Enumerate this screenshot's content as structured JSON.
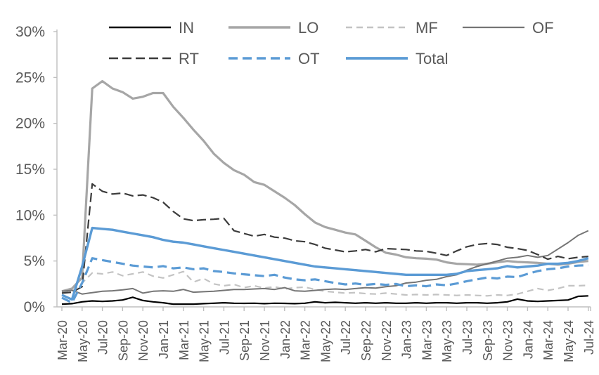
{
  "chart_data": {
    "type": "line",
    "title": "",
    "ylabel": "",
    "xlabel": "",
    "ylim": [
      0,
      30
    ],
    "grid": false,
    "legend_position": "top",
    "y_tick_labels": [
      "0%",
      "5%",
      "10%",
      "15%",
      "20%",
      "25%",
      "30%"
    ],
    "x_tick_labels": [
      "Mar-20",
      "May-20",
      "Jul-20",
      "Sep-20",
      "Nov-20",
      "Jan-21",
      "Mar-21",
      "May-21",
      "Jul-21",
      "Sep-21",
      "Nov-21",
      "Jan-22",
      "Mar-22",
      "May-22",
      "Jul-22",
      "Sep-22",
      "Nov-22",
      "Jan-23",
      "Mar-23",
      "May-23",
      "Jul-23",
      "Sep-23",
      "Nov-23",
      "Jan-24",
      "Mar-24",
      "May-24",
      "Jul-24"
    ],
    "months": [
      "Mar-20",
      "Apr-20",
      "May-20",
      "Jun-20",
      "Jul-20",
      "Aug-20",
      "Sep-20",
      "Oct-20",
      "Nov-20",
      "Dec-20",
      "Jan-21",
      "Feb-21",
      "Mar-21",
      "Apr-21",
      "May-21",
      "Jun-21",
      "Jul-21",
      "Aug-21",
      "Sep-21",
      "Oct-21",
      "Nov-21",
      "Dec-21",
      "Jan-22",
      "Feb-22",
      "Mar-22",
      "Apr-22",
      "May-22",
      "Jun-22",
      "Jul-22",
      "Aug-22",
      "Sep-22",
      "Oct-22",
      "Nov-22",
      "Dec-22",
      "Jan-23",
      "Feb-23",
      "Mar-23",
      "Apr-23",
      "May-23",
      "Jun-23",
      "Jul-23",
      "Aug-23",
      "Sep-23",
      "Oct-23",
      "Nov-23",
      "Dec-23",
      "Jan-24",
      "Feb-24",
      "Mar-24",
      "Apr-24",
      "May-24",
      "Jun-24",
      "Jul-24"
    ],
    "colors": {
      "accent_blue": "#5b9bd5",
      "gray_light": "#c3c3c3",
      "gray_mid": "#a6a6a6",
      "gray_dark": "#757575",
      "near_black": "#3b3b3b",
      "black": "#000000",
      "axis": "#bfbfbf",
      "text": "#595959"
    },
    "series": [
      {
        "name": "IN",
        "color": "#000000",
        "dash": "none",
        "width": 2.2,
        "values": [
          0.3,
          0.35,
          0.55,
          0.65,
          0.6,
          0.65,
          0.75,
          1.05,
          0.7,
          0.55,
          0.45,
          0.3,
          0.3,
          0.3,
          0.35,
          0.4,
          0.45,
          0.4,
          0.38,
          0.4,
          0.35,
          0.4,
          0.38,
          0.35,
          0.4,
          0.55,
          0.45,
          0.5,
          0.45,
          0.4,
          0.45,
          0.4,
          0.45,
          0.4,
          0.4,
          0.45,
          0.4,
          0.45,
          0.45,
          0.4,
          0.45,
          0.45,
          0.4,
          0.45,
          0.55,
          0.85,
          0.65,
          0.6,
          0.65,
          0.7,
          0.75,
          1.15,
          1.2
        ]
      },
      {
        "name": "LO",
        "color": "#a6a6a6",
        "dash": "none",
        "width": 3.2,
        "values": [
          1.7,
          2.0,
          3.2,
          23.8,
          24.6,
          23.8,
          23.4,
          22.7,
          22.9,
          23.3,
          23.3,
          21.8,
          20.6,
          19.3,
          18.1,
          16.7,
          15.7,
          14.9,
          14.4,
          13.6,
          13.3,
          12.6,
          11.9,
          11.1,
          10.1,
          9.2,
          8.7,
          8.4,
          8.1,
          7.9,
          7.2,
          6.5,
          5.9,
          5.7,
          5.4,
          5.3,
          5.25,
          5.15,
          4.85,
          4.7,
          4.65,
          4.6,
          4.7,
          4.85,
          5.0,
          4.9,
          4.85,
          4.8,
          4.7,
          4.6,
          4.7,
          4.9,
          5.0
        ]
      },
      {
        "name": "MF",
        "color": "#c3c3c3",
        "dash": "9,6",
        "width": 2.2,
        "values": [
          1.6,
          1.7,
          2.6,
          3.7,
          3.6,
          3.8,
          3.4,
          3.6,
          3.8,
          3.35,
          3.15,
          3.5,
          3.85,
          2.7,
          3.1,
          2.5,
          2.3,
          2.45,
          2.1,
          2.3,
          2.05,
          2.2,
          1.95,
          2.1,
          2.15,
          1.9,
          1.7,
          1.6,
          1.5,
          1.55,
          1.45,
          1.4,
          1.5,
          1.4,
          1.3,
          1.35,
          1.3,
          1.35,
          1.3,
          1.25,
          1.3,
          1.25,
          1.2,
          1.3,
          1.25,
          1.4,
          1.7,
          2.0,
          1.8,
          2.0,
          2.3,
          2.3,
          2.35
        ]
      },
      {
        "name": "OF",
        "color": "#757575",
        "dash": "none",
        "width": 2.0,
        "values": [
          1.7,
          1.8,
          1.4,
          1.55,
          1.7,
          1.75,
          1.85,
          2.0,
          1.5,
          1.7,
          1.75,
          1.7,
          1.9,
          1.6,
          1.65,
          1.7,
          1.8,
          1.9,
          1.9,
          1.95,
          2.0,
          1.9,
          2.1,
          1.75,
          1.7,
          1.8,
          1.9,
          1.95,
          1.9,
          2.0,
          2.1,
          2.05,
          2.2,
          2.3,
          2.6,
          2.7,
          2.9,
          3.0,
          3.3,
          3.5,
          4.0,
          4.4,
          4.7,
          5.0,
          5.3,
          5.4,
          5.6,
          5.4,
          5.6,
          6.3,
          7.0,
          7.8,
          8.3
        ]
      },
      {
        "name": "RT",
        "color": "#3b3b3b",
        "dash": "13,6",
        "width": 2.2,
        "values": [
          1.5,
          1.6,
          2.2,
          13.4,
          12.6,
          12.3,
          12.4,
          12.1,
          12.2,
          11.9,
          11.4,
          10.4,
          9.6,
          9.4,
          9.5,
          9.55,
          9.65,
          8.3,
          8.0,
          7.7,
          7.9,
          7.6,
          7.5,
          7.2,
          7.1,
          6.8,
          6.4,
          6.2,
          6.0,
          6.1,
          6.25,
          6.0,
          6.35,
          6.3,
          6.25,
          6.1,
          6.05,
          5.85,
          5.6,
          6.1,
          6.55,
          6.8,
          6.9,
          6.8,
          6.5,
          6.35,
          6.15,
          5.7,
          5.2,
          5.5,
          5.25,
          5.4,
          5.5
        ]
      },
      {
        "name": "OT",
        "color": "#5b9bd5",
        "dash": "13,7",
        "width": 3.2,
        "values": [
          1.0,
          0.45,
          2.6,
          5.3,
          5.1,
          4.9,
          4.7,
          4.5,
          4.4,
          4.3,
          4.45,
          4.2,
          4.3,
          4.1,
          4.2,
          3.9,
          3.8,
          3.65,
          3.55,
          3.45,
          3.35,
          3.5,
          3.2,
          3.0,
          2.9,
          3.0,
          2.8,
          2.6,
          2.45,
          2.55,
          2.4,
          2.5,
          2.4,
          2.5,
          2.25,
          2.35,
          2.25,
          2.45,
          2.35,
          2.55,
          2.8,
          3.0,
          3.2,
          3.1,
          3.3,
          3.25,
          3.6,
          3.9,
          4.1,
          4.2,
          4.4,
          4.5,
          4.55
        ]
      },
      {
        "name": "Total",
        "color": "#5b9bd5",
        "dash": "none",
        "width": 3.4,
        "values": [
          1.3,
          0.8,
          4.4,
          8.6,
          8.5,
          8.4,
          8.2,
          8.0,
          7.8,
          7.6,
          7.3,
          7.1,
          7.0,
          6.8,
          6.6,
          6.4,
          6.2,
          6.0,
          5.8,
          5.6,
          5.4,
          5.2,
          5.0,
          4.8,
          4.6,
          4.4,
          4.3,
          4.2,
          4.1,
          4.0,
          3.9,
          3.8,
          3.7,
          3.6,
          3.5,
          3.5,
          3.5,
          3.5,
          3.5,
          3.6,
          3.9,
          4.0,
          4.1,
          4.2,
          4.45,
          4.3,
          4.4,
          4.5,
          4.7,
          4.7,
          4.8,
          5.0,
          5.3
        ]
      }
    ],
    "legend_rows": [
      [
        "IN",
        "LO",
        "MF",
        "OF"
      ],
      [
        "RT",
        "OT",
        "Total"
      ]
    ]
  }
}
